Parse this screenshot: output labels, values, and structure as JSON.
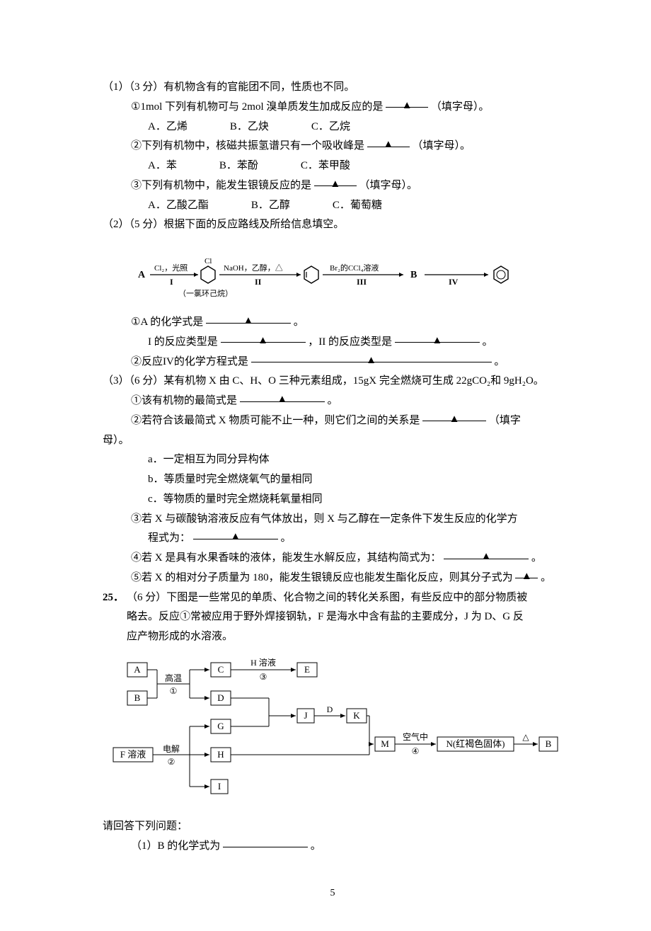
{
  "page_number": "5",
  "q24": {
    "p1": {
      "header": "（1）（3 分）有机物含有的官能团不同，性质也不同。",
      "sub1": {
        "prompt_a": "①1mol 下列有机物可与 2mol 溴单质发生加成反应的是",
        "prompt_b": "（填字母）。",
        "opts": {
          "a": "A．乙烯",
          "b": "B．乙炔",
          "c": "C．乙烷"
        }
      },
      "sub2": {
        "prompt_a": "②下列有机物中，核磁共振氢谱只有一个吸收峰是",
        "prompt_b": "（填字母）。",
        "opts": {
          "a": "A．苯",
          "b": "B．苯酚",
          "c": "C．苯甲酸"
        }
      },
      "sub3": {
        "prompt_a": "③下列有机物中，能发生银镜反应的是",
        "prompt_b": "（填字母）。",
        "opts": {
          "a": "A．乙酸乙酯",
          "b": "B．乙醇",
          "c": "C．葡萄糖"
        }
      }
    },
    "p2": {
      "header": "（2）（5 分）根据下面的反应路线及所给信息填空。",
      "diagram": {
        "A": "A",
        "step1_top": "Cl₂，光照",
        "step1_bottom": "I",
        "hex1_top": "Cl",
        "hex1_bottom": "（一氯环己烷）",
        "step2_top": "NaOH，乙醇，△",
        "step2_bottom": "II",
        "step3_top": "Br₂的CCl₄溶液",
        "step3_bottom": "III",
        "B": "B",
        "step4_bottom": "IV"
      },
      "q1": "①A 的化学式是",
      "q1_tail": "。",
      "q2a": "I 的反应类型是",
      "q2b": "，II 的反应类型是",
      "q2c": "。",
      "q3": "②反应IV的化学方程式是",
      "q3_tail": "。"
    },
    "p3": {
      "header": "（3）（6 分）某有机物 X 由 C、H、O 三种元素组成，15gX 完全燃烧可生成 22gCO₂和 9gH₂O。",
      "q1": "①该有机物的最简式是",
      "q1_tail": "。",
      "q2a": "②若符合该最简式 X 物质可能不止一种，则它们之间的关系是",
      "q2b": "（填字",
      "q2c": "母）。",
      "opt_a": "a．一定相互为同分异构体",
      "opt_b": "b．等质量时完全燃烧氧气的量相同",
      "opt_c": "c．等物质的量时完全燃烧耗氧量相同",
      "q3a": "③若 X 与碳酸钠溶液反应有气体放出，则 X 与乙醇在一定条件下发生反应的化学方",
      "q3b": "程式为：",
      "q3c": "。",
      "q4a": "④若 X 是具有水果香味的液体，能发生水解反应，其结构简式为：",
      "q4b": "。",
      "q5a": "⑤若 X 的相对分子质量为 180，能发生银镜反应也能发生酯化反应，则其分子式为",
      "q5b": "。"
    }
  },
  "q25": {
    "num": "25．",
    "header_a": "（6 分）下图是一些常见的单质、化合物之间的转化关系图，有些反应中的部分物质被",
    "header_b": "略去。反应①常被应用于野外焊接钢轨，F 是海水中含有盐的主要成分，J 为 D、G 反",
    "header_c": "应产物形成的水溶液。",
    "diagram": {
      "nodes": {
        "A": "A",
        "B": "B",
        "C": "C",
        "D": "D",
        "E": "E",
        "F": "F 溶液",
        "G": "G",
        "H": "H",
        "I": "I",
        "J": "J",
        "K": "K",
        "M": "M",
        "N": "N(红褐色固体)",
        "B2": "B"
      },
      "edge_labels": {
        "e1": "高温",
        "e1n": "①",
        "e3": "H 溶液",
        "e3n": "③",
        "e2": "电解",
        "e2n": "②",
        "eD": "D",
        "e4": "空气中",
        "e4n": "④",
        "eDelta": "△"
      },
      "style": {
        "node_border": "#000000",
        "node_fill": "#ffffff",
        "text_color": "#000000",
        "node_font": 13,
        "label_font": 12,
        "line_width": 1
      }
    },
    "tail": "请回答下列问题：",
    "q1a": "（1）B 的化学式为",
    "q1b": "。"
  },
  "marker": "▲"
}
